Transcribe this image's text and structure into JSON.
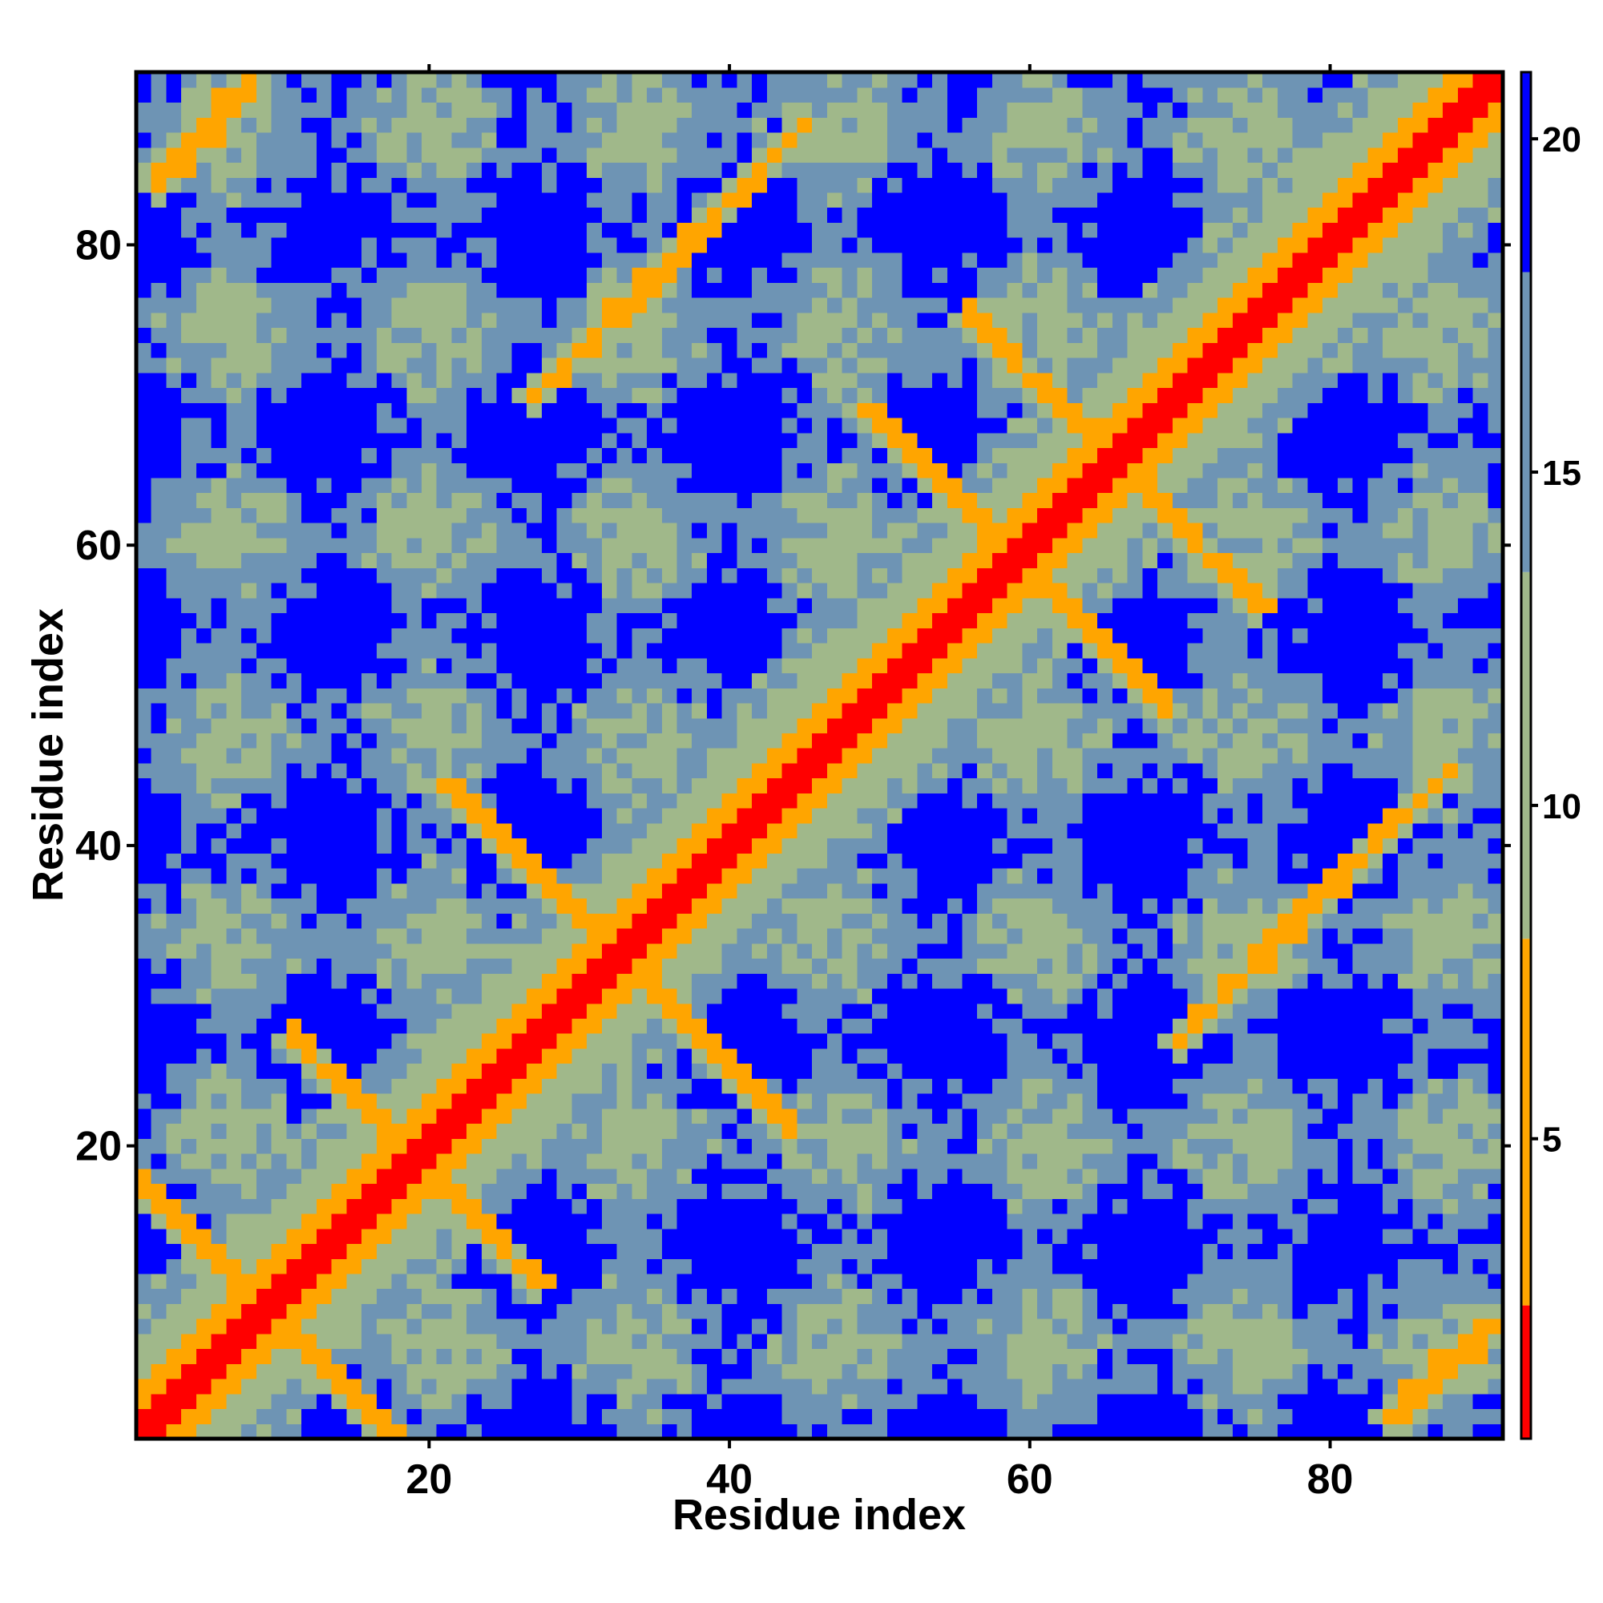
{
  "chart_data": {
    "type": "heatmap",
    "title": "",
    "xlabel": "Residue index",
    "ylabel": "Residue index",
    "n_residues": 91,
    "xlim": [
      0.5,
      91.5
    ],
    "ylim": [
      0.5,
      91.5
    ],
    "x_ticks": [
      20,
      40,
      60,
      80
    ],
    "y_ticks": [
      20,
      40,
      60,
      80
    ],
    "x_tick_labels": [
      "20",
      "40",
      "60",
      "80"
    ],
    "y_tick_labels": [
      "20",
      "40",
      "60",
      "80"
    ],
    "colorbar": {
      "range": [
        0.5,
        21
      ],
      "ticks": [
        5,
        10,
        15,
        20
      ],
      "tick_labels": [
        "5",
        "10",
        "15",
        "20"
      ],
      "bands": [
        {
          "from": 0.5,
          "to": 2.5,
          "color": "#ff0000"
        },
        {
          "from": 2.5,
          "to": 8.0,
          "color": "#ffa500"
        },
        {
          "from": 8.0,
          "to": 13.5,
          "color": "#a0b88a"
        },
        {
          "from": 13.5,
          "to": 18.0,
          "color": "#6e94b4"
        },
        {
          "from": 18.0,
          "to": 21.0,
          "color": "#0000ff"
        }
      ]
    },
    "structure": {
      "diagonal": {
        "value": 0.8
      },
      "strands": [
        {
          "start": 1,
          "end": 17,
          "pair_sum": 18,
          "type": "anti"
        },
        {
          "start": 11,
          "end": 27,
          "pair_sum": 38,
          "type": "anti"
        },
        {
          "start": 21,
          "end": 44,
          "pair_sum": 65,
          "type": "anti"
        },
        {
          "start": 2,
          "end": 8,
          "pair_start": 84,
          "type": "parallel"
        },
        {
          "start": 27,
          "end": 45,
          "pair_offset": 43,
          "type": "parallel"
        },
        {
          "start": 49,
          "end": 66,
          "pair_sum": 118,
          "type": "anti"
        },
        {
          "start": 56,
          "end": 75,
          "pair_sum": 131,
          "type": "anti"
        },
        {
          "start": 2,
          "end": 8,
          "pair_start": 85,
          "type": "near",
          "note": "corner"
        }
      ]
    }
  }
}
